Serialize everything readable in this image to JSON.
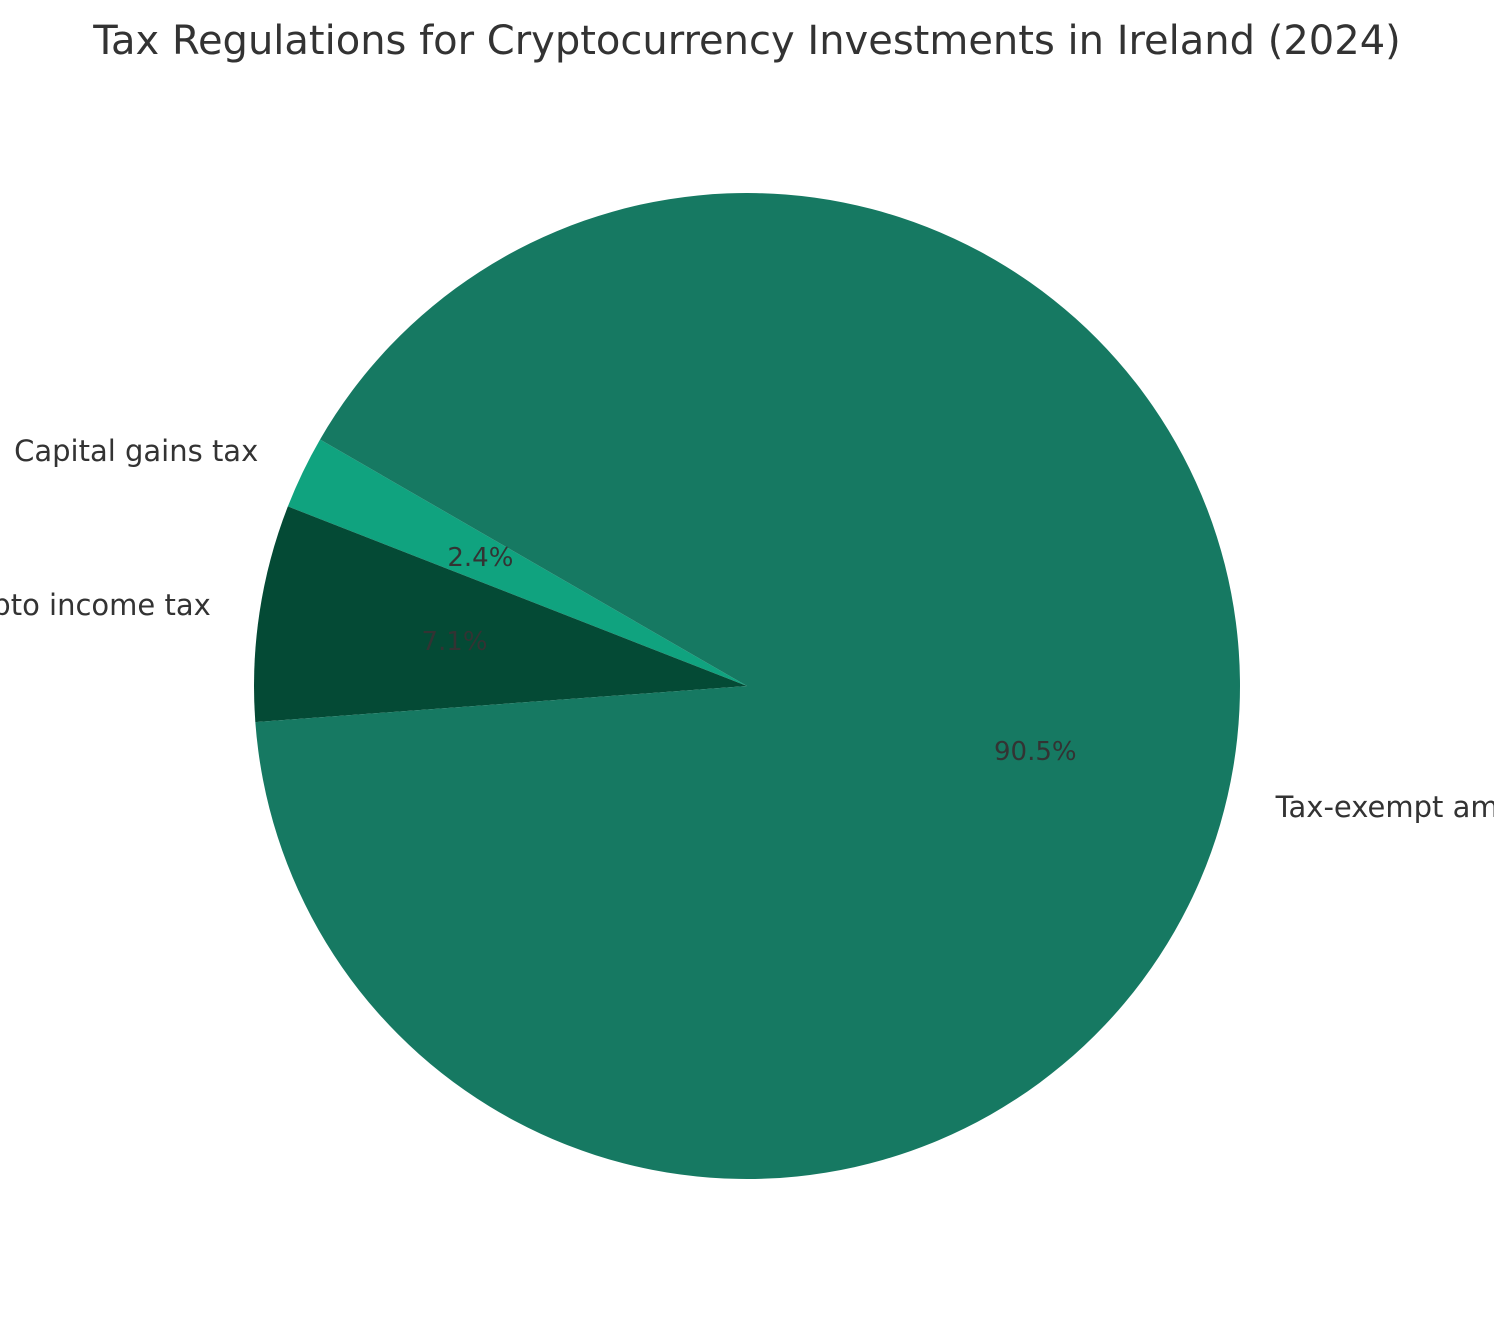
{
  "chart_data": {
    "type": "pie",
    "title": "Tax Regulations for Cryptocurrency Investments in Ireland (2024)",
    "start_angle_deg": 150,
    "direction": "counterclockwise",
    "slices": [
      {
        "label": "Capital gains tax",
        "value": 2.4,
        "pct_label": "2.4%",
        "color": "#10a37f"
      },
      {
        "label": "Crypto income tax",
        "value": 7.1,
        "pct_label": "7.1%",
        "color": "#044a35"
      },
      {
        "label": "Tax-exempt amount",
        "value": 90.5,
        "pct_label": "90.5%",
        "color": "#167962"
      }
    ],
    "legend": "none"
  }
}
